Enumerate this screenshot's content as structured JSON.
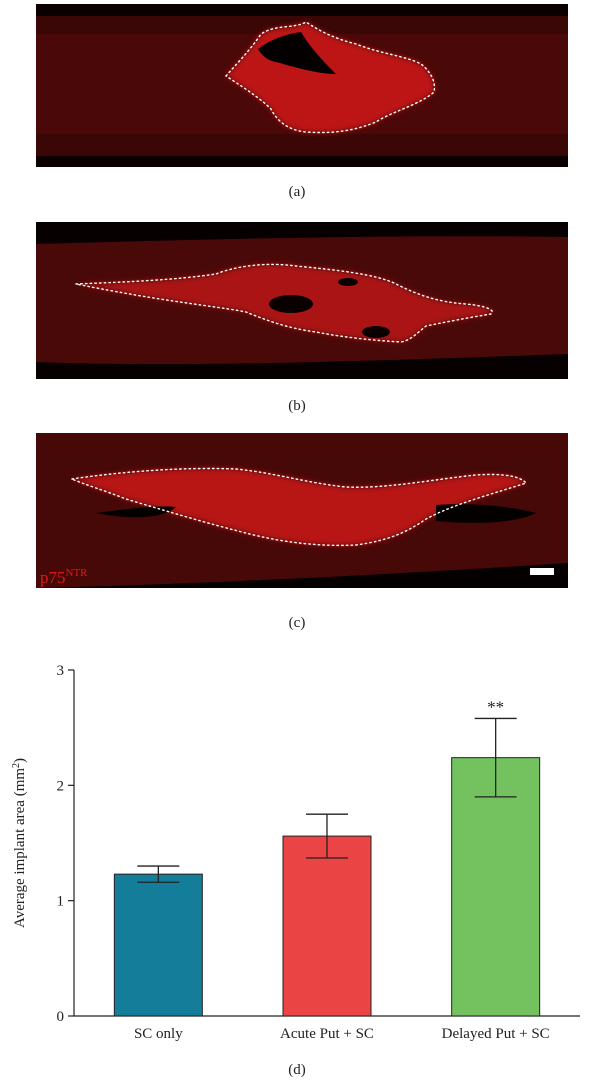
{
  "panels": {
    "a_label": "(a)",
    "b_label": "(b)",
    "c_label": "(c)",
    "d_label": "(d)",
    "stain_text": "p75",
    "stain_sup": "NTR",
    "stain_color": "#e01a1a"
  },
  "chart_data": {
    "type": "bar",
    "categories": [
      "SC only",
      "Acute Put + SC",
      "Delayed Put + SC"
    ],
    "values": [
      1.23,
      1.56,
      2.24
    ],
    "errors": [
      0.07,
      0.19,
      0.34
    ],
    "colors": [
      "#147d99",
      "#ea4444",
      "#73c25f"
    ],
    "annotations": [
      "",
      "",
      "**"
    ],
    "ylabel": "Average implant area (mm",
    "ylabel_sup": "2",
    "ylabel_end": ")",
    "ylim": [
      0,
      3
    ],
    "yticks": [
      "0",
      "1",
      "2",
      "3"
    ]
  }
}
